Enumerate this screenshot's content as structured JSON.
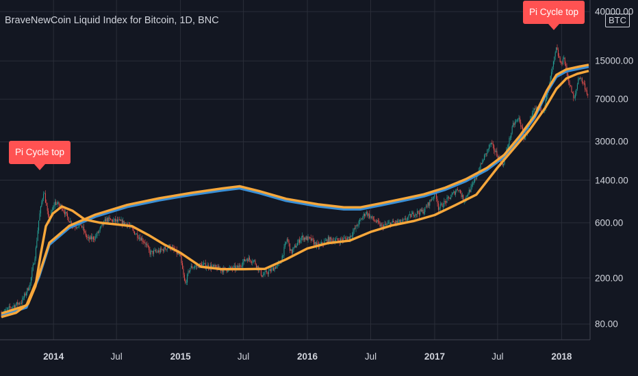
{
  "header": {
    "title": "BraveNewCoin Liquid Index for Bitcoin, 1D, BNC",
    "currency_badge": "BTC"
  },
  "signals": [
    {
      "label": "Pi Cycle top",
      "date": "2013-12-04"
    },
    {
      "label": "Pi Cycle top",
      "date": "2017-12-17"
    }
  ],
  "colors": {
    "background": "#131722",
    "grid": "#2a2e39",
    "ma_fast": "#f7a73b",
    "ma_slow": "#f7a73b",
    "ma_slow_lower": "#3a8fd6",
    "candle_up": "#26a69a",
    "candle_down": "#ef5350",
    "signal": "#ff5252"
  },
  "chart_data": {
    "type": "line",
    "y_scale": "log",
    "ylim": [
      55,
      40000
    ],
    "xlim": [
      "2013-08-04",
      "2018-03-20"
    ],
    "y_ticks": [
      {
        "value": 40000,
        "label": "40000.00"
      },
      {
        "value": 15000,
        "label": "15000.00"
      },
      {
        "value": 7000,
        "label": "7000.00"
      },
      {
        "value": 3000,
        "label": "3000.00"
      },
      {
        "value": 1400,
        "label": "1400.00"
      },
      {
        "value": 600,
        "label": "600.00"
      },
      {
        "value": 200,
        "label": "200.00"
      },
      {
        "value": 80,
        "label": "80.00"
      }
    ],
    "x_ticks": [
      {
        "date": "2014-01-01",
        "label": "2014",
        "bold": true
      },
      {
        "date": "2014-07-01",
        "label": "Jul",
        "bold": false
      },
      {
        "date": "2015-01-01",
        "label": "2015",
        "bold": true
      },
      {
        "date": "2015-07-01",
        "label": "Jul",
        "bold": false
      },
      {
        "date": "2016-01-01",
        "label": "2016",
        "bold": true
      },
      {
        "date": "2016-07-01",
        "label": "Jul",
        "bold": false
      },
      {
        "date": "2017-01-01",
        "label": "2017",
        "bold": true
      },
      {
        "date": "2017-07-01",
        "label": "Jul",
        "bold": false
      },
      {
        "date": "2018-01-01",
        "label": "2018",
        "bold": true
      }
    ],
    "grid": true,
    "series": [
      {
        "role": "price",
        "style": "candles",
        "points": [
          [
            "2013-08-04",
            98
          ],
          [
            "2013-09-01",
            112
          ],
          [
            "2013-10-01",
            125
          ],
          [
            "2013-10-25",
            175
          ],
          [
            "2013-11-10",
            330
          ],
          [
            "2013-11-20",
            650
          ],
          [
            "2013-12-04",
            1150
          ],
          [
            "2013-12-18",
            620
          ],
          [
            "2014-01-05",
            900
          ],
          [
            "2014-01-25",
            820
          ],
          [
            "2014-02-12",
            650
          ],
          [
            "2014-02-28",
            560
          ],
          [
            "2014-03-20",
            580
          ],
          [
            "2014-04-10",
            430
          ],
          [
            "2014-05-01",
            450
          ],
          [
            "2014-06-01",
            640
          ],
          [
            "2014-07-01",
            620
          ],
          [
            "2014-08-01",
            590
          ],
          [
            "2014-08-20",
            500
          ],
          [
            "2014-09-20",
            410
          ],
          [
            "2014-10-05",
            330
          ],
          [
            "2014-11-01",
            340
          ],
          [
            "2014-12-01",
            375
          ],
          [
            "2014-12-31",
            310
          ],
          [
            "2015-01-14",
            175
          ],
          [
            "2015-01-28",
            245
          ],
          [
            "2015-03-01",
            260
          ],
          [
            "2015-04-01",
            250
          ],
          [
            "2015-05-01",
            235
          ],
          [
            "2015-06-15",
            245
          ],
          [
            "2015-07-10",
            295
          ],
          [
            "2015-08-01",
            280
          ],
          [
            "2015-08-24",
            210
          ],
          [
            "2015-09-20",
            235
          ],
          [
            "2015-10-15",
            270
          ],
          [
            "2015-11-04",
            440
          ],
          [
            "2015-11-15",
            330
          ],
          [
            "2015-12-15",
            450
          ],
          [
            "2016-01-10",
            430
          ],
          [
            "2016-02-01",
            375
          ],
          [
            "2016-03-01",
            430
          ],
          [
            "2016-04-01",
            420
          ],
          [
            "2016-05-01",
            450
          ],
          [
            "2016-06-17",
            740
          ],
          [
            "2016-07-01",
            670
          ],
          [
            "2016-08-02",
            555
          ],
          [
            "2016-09-01",
            600
          ],
          [
            "2016-10-01",
            610
          ],
          [
            "2016-11-01",
            720
          ],
          [
            "2016-12-01",
            760
          ],
          [
            "2017-01-04",
            1100
          ],
          [
            "2017-01-12",
            800
          ],
          [
            "2017-02-15",
            1000
          ],
          [
            "2017-03-10",
            1200
          ],
          [
            "2017-03-25",
            940
          ],
          [
            "2017-04-20",
            1250
          ],
          [
            "2017-05-20",
            2100
          ],
          [
            "2017-06-11",
            2900
          ],
          [
            "2017-07-16",
            1900
          ],
          [
            "2017-08-15",
            4200
          ],
          [
            "2017-09-01",
            4800
          ],
          [
            "2017-09-15",
            3200
          ],
          [
            "2017-10-15",
            5700
          ],
          [
            "2017-11-12",
            5800
          ],
          [
            "2017-11-28",
            9900
          ],
          [
            "2017-12-17",
            19200
          ],
          [
            "2017-12-31",
            13600
          ],
          [
            "2018-01-06",
            16800
          ],
          [
            "2018-01-18",
            11000
          ],
          [
            "2018-02-06",
            6800
          ],
          [
            "2018-02-20",
            11200
          ],
          [
            "2018-03-08",
            9200
          ],
          [
            "2018-03-20",
            7200
          ]
        ]
      },
      {
        "role": "ma_fast",
        "style": "line",
        "points": [
          [
            "2013-08-04",
            92
          ],
          [
            "2013-09-15",
            100
          ],
          [
            "2013-10-20",
            120
          ],
          [
            "2013-11-10",
            170
          ],
          [
            "2013-11-25",
            320
          ],
          [
            "2013-12-10",
            560
          ],
          [
            "2013-12-30",
            720
          ],
          [
            "2014-01-25",
            830
          ],
          [
            "2014-02-25",
            760
          ],
          [
            "2014-04-01",
            640
          ],
          [
            "2014-05-15",
            600
          ],
          [
            "2014-07-01",
            580
          ],
          [
            "2014-08-15",
            560
          ],
          [
            "2014-10-01",
            470
          ],
          [
            "2014-11-15",
            390
          ],
          [
            "2015-01-01",
            330
          ],
          [
            "2015-03-01",
            250
          ],
          [
            "2015-05-01",
            238
          ],
          [
            "2015-07-01",
            238
          ],
          [
            "2015-09-01",
            240
          ],
          [
            "2015-11-01",
            290
          ],
          [
            "2016-01-01",
            360
          ],
          [
            "2016-03-01",
            400
          ],
          [
            "2016-05-01",
            420
          ],
          [
            "2016-07-01",
            500
          ],
          [
            "2016-09-01",
            570
          ],
          [
            "2016-11-01",
            620
          ],
          [
            "2017-01-01",
            700
          ],
          [
            "2017-03-01",
            850
          ],
          [
            "2017-05-01",
            1050
          ],
          [
            "2017-07-01",
            1800
          ],
          [
            "2017-08-15",
            2600
          ],
          [
            "2017-10-01",
            3800
          ],
          [
            "2017-11-15",
            5900
          ],
          [
            "2017-12-17",
            8600
          ],
          [
            "2018-01-15",
            10600
          ],
          [
            "2018-02-15",
            11600
          ],
          [
            "2018-03-20",
            12300
          ]
        ]
      },
      {
        "role": "ma_slow",
        "style": "line",
        "points": [
          [
            "2013-08-04",
            98
          ],
          [
            "2013-10-15",
            115
          ],
          [
            "2013-11-20",
            210
          ],
          [
            "2013-12-20",
            400
          ],
          [
            "2014-02-15",
            560
          ],
          [
            "2014-05-01",
            700
          ],
          [
            "2014-08-01",
            850
          ],
          [
            "2014-11-01",
            970
          ],
          [
            "2015-02-01",
            1080
          ],
          [
            "2015-05-01",
            1180
          ],
          [
            "2015-06-20",
            1230
          ],
          [
            "2015-08-15",
            1120
          ],
          [
            "2015-11-01",
            960
          ],
          [
            "2016-02-01",
            860
          ],
          [
            "2016-04-15",
            810
          ],
          [
            "2016-06-01",
            810
          ],
          [
            "2016-08-01",
            880
          ],
          [
            "2016-10-01",
            960
          ],
          [
            "2016-12-01",
            1050
          ],
          [
            "2017-02-01",
            1200
          ],
          [
            "2017-04-01",
            1420
          ],
          [
            "2017-06-01",
            1780
          ],
          [
            "2017-07-20",
            2300
          ],
          [
            "2017-09-01",
            3300
          ],
          [
            "2017-10-15",
            5000
          ],
          [
            "2017-11-20",
            8300
          ],
          [
            "2017-12-17",
            11300
          ],
          [
            "2018-01-15",
            12600
          ],
          [
            "2018-02-20",
            13300
          ],
          [
            "2018-03-20",
            13800
          ]
        ]
      }
    ]
  }
}
